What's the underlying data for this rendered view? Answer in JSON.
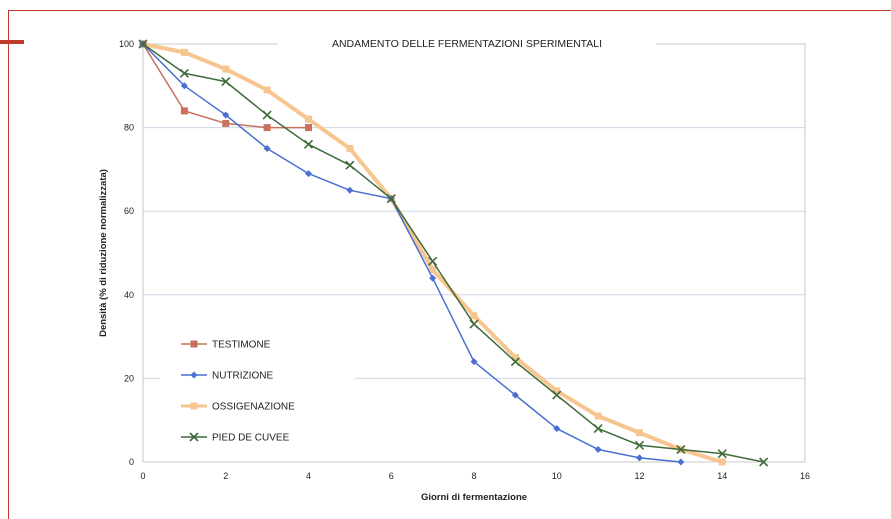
{
  "chart_data": {
    "type": "line",
    "title": "ANDAMENTO DELLE FERMENTAZIONI SPERIMENTALI",
    "xlabel": "Giorni di fermentazione",
    "ylabel": "Densità (% di riduzione normalizzata)",
    "xlim": [
      0,
      16
    ],
    "ylim": [
      0,
      100
    ],
    "xticks": [
      0,
      2,
      4,
      6,
      8,
      10,
      12,
      14,
      16
    ],
    "yticks": [
      0,
      20,
      40,
      60,
      80,
      100
    ],
    "grid": "horizontal",
    "legend_position": "bottom-left",
    "series": [
      {
        "name": "TESTIMONE",
        "color": "#c9715a",
        "marker": "square",
        "x": [
          0,
          1,
          2,
          3,
          4
        ],
        "y": [
          100,
          84,
          81,
          80,
          80
        ]
      },
      {
        "name": "NUTRIZIONE",
        "color": "#4a6fd0",
        "marker": "diamond",
        "x": [
          0,
          1,
          2,
          3,
          4,
          5,
          6,
          7,
          8,
          9,
          10,
          11,
          12,
          13
        ],
        "y": [
          100,
          90,
          83,
          75,
          69,
          65,
          63,
          44,
          24,
          16,
          8,
          3,
          1,
          0
        ]
      },
      {
        "name": "OSSIGENAZIONE",
        "color": "#f7c58f",
        "marker": "square",
        "x": [
          0,
          1,
          2,
          3,
          4,
          5,
          6,
          7,
          8,
          9,
          10,
          11,
          12,
          13,
          14
        ],
        "y": [
          100,
          98,
          94,
          89,
          82,
          75,
          63,
          46,
          35,
          25,
          17,
          11,
          7,
          3,
          0
        ]
      },
      {
        "name": "PIED DE CUVEE",
        "color": "#3f6b3a",
        "marker": "x",
        "x": [
          0,
          1,
          2,
          3,
          4,
          5,
          6,
          7,
          8,
          9,
          10,
          11,
          12,
          13,
          14,
          15
        ],
        "y": [
          100,
          93,
          91,
          83,
          76,
          71,
          63,
          48,
          33,
          24,
          16,
          8,
          4,
          3,
          2,
          0
        ]
      }
    ]
  }
}
